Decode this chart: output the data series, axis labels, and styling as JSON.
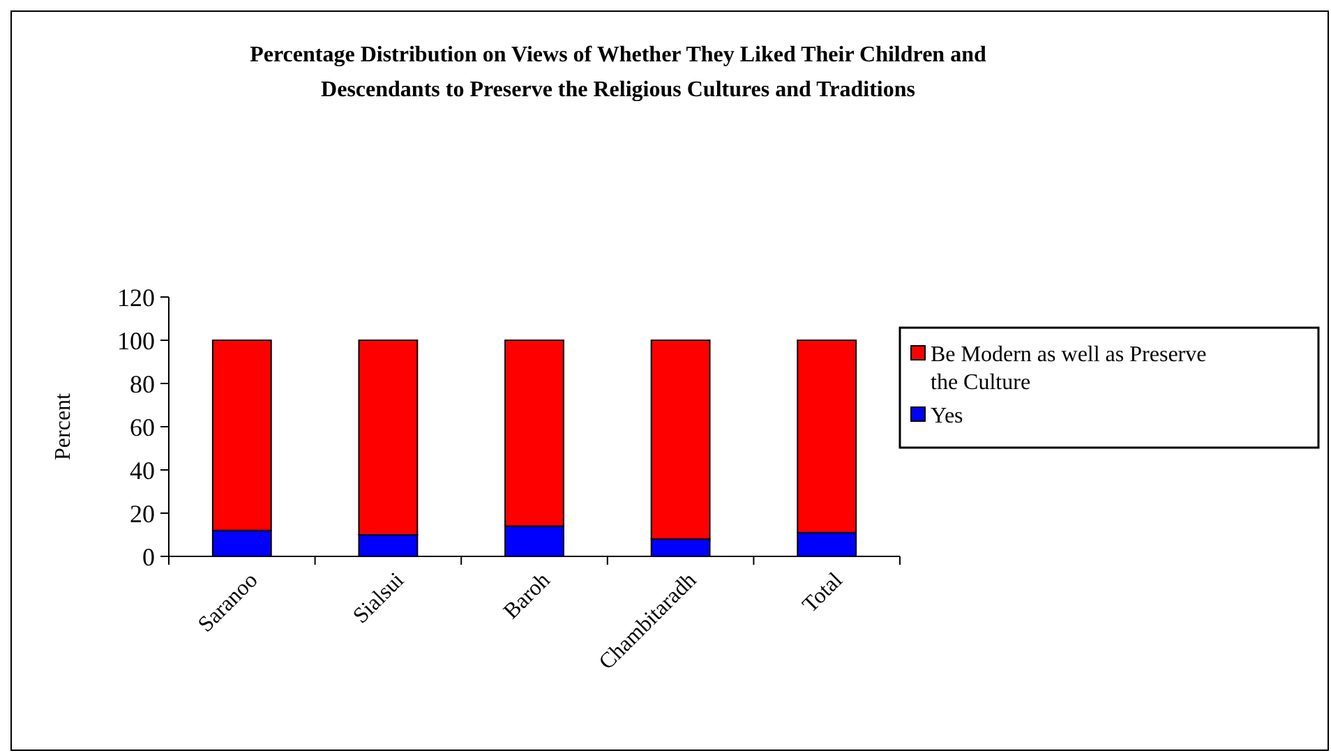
{
  "chart_data": {
    "type": "bar",
    "stacked": true,
    "title": "Percentage Distribution on Views of Whether They Liked Their Children and Descendants to Preserve the Religious Cultures and Traditions",
    "ylabel": "Percent",
    "categories": [
      "Saranoo",
      "Sialsui",
      "Baroh",
      "Chambitaradh",
      "Total"
    ],
    "series": [
      {
        "name": "Yes",
        "color": "#0000ff",
        "values": [
          12,
          10,
          14,
          8,
          11
        ]
      },
      {
        "name": "Be Modern as well as Preserve the Culture",
        "color": "#ff0000",
        "values": [
          88,
          90,
          86,
          92,
          89
        ]
      }
    ],
    "ylim": [
      0,
      120
    ],
    "yticks": [
      0,
      20,
      40,
      60,
      80,
      100,
      120
    ],
    "legend": "right",
    "grid": false
  }
}
